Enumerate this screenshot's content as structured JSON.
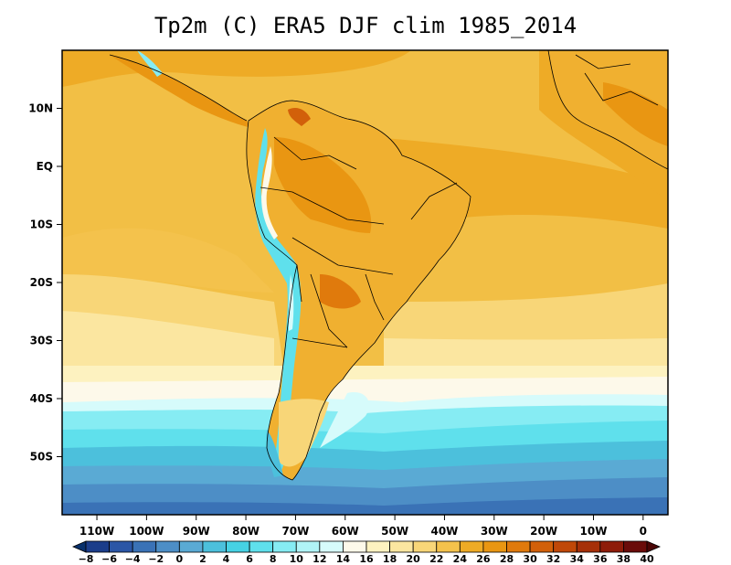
{
  "title": "Tp2m (C) ERA5 DJF clim 1985_2014",
  "map": {
    "variable": "Tp2m",
    "units": "C",
    "region": "South America",
    "lon_range": [
      -117,
      5
    ],
    "lat_range": [
      -60,
      20
    ],
    "lat_ticks": [
      {
        "value": 10,
        "label": "10N"
      },
      {
        "value": 0,
        "label": "EQ"
      },
      {
        "value": -10,
        "label": "10S"
      },
      {
        "value": -20,
        "label": "20S"
      },
      {
        "value": -30,
        "label": "30S"
      },
      {
        "value": -40,
        "label": "40S"
      },
      {
        "value": -50,
        "label": "50S"
      }
    ],
    "lon_ticks": [
      {
        "value": -110,
        "label": "110W"
      },
      {
        "value": -100,
        "label": "100W"
      },
      {
        "value": -90,
        "label": "90W"
      },
      {
        "value": -80,
        "label": "80W"
      },
      {
        "value": -70,
        "label": "70W"
      },
      {
        "value": -60,
        "label": "60W"
      },
      {
        "value": -50,
        "label": "50W"
      },
      {
        "value": -40,
        "label": "40W"
      },
      {
        "value": -30,
        "label": "30W"
      },
      {
        "value": -20,
        "label": "20W"
      },
      {
        "value": -10,
        "label": "10W"
      },
      {
        "value": 0,
        "label": "0"
      }
    ]
  },
  "colorbar": {
    "labels": [
      "−8",
      "−6",
      "−4",
      "−2",
      "0",
      "2",
      "4",
      "6",
      "8",
      "10",
      "12",
      "14",
      "16",
      "18",
      "20",
      "22",
      "24",
      "26",
      "28",
      "30",
      "32",
      "34",
      "36",
      "38",
      "40"
    ],
    "colors": [
      "#08306b",
      "#1b3d8a",
      "#2b56a6",
      "#3a72b6",
      "#4d8ec6",
      "#5aaad4",
      "#4cc0dc",
      "#46d2e4",
      "#5fe0ec",
      "#86ecf3",
      "#b0f4f7",
      "#d6fbfb",
      "#fdf9ea",
      "#fdf2c0",
      "#fbe6a0",
      "#f8d678",
      "#f4c24c",
      "#eeab26",
      "#e99612",
      "#e07a0c",
      "#d2600a",
      "#c04808",
      "#a63008",
      "#8e1c0a",
      "#6a0c0a",
      "#4a0606"
    ]
  }
}
